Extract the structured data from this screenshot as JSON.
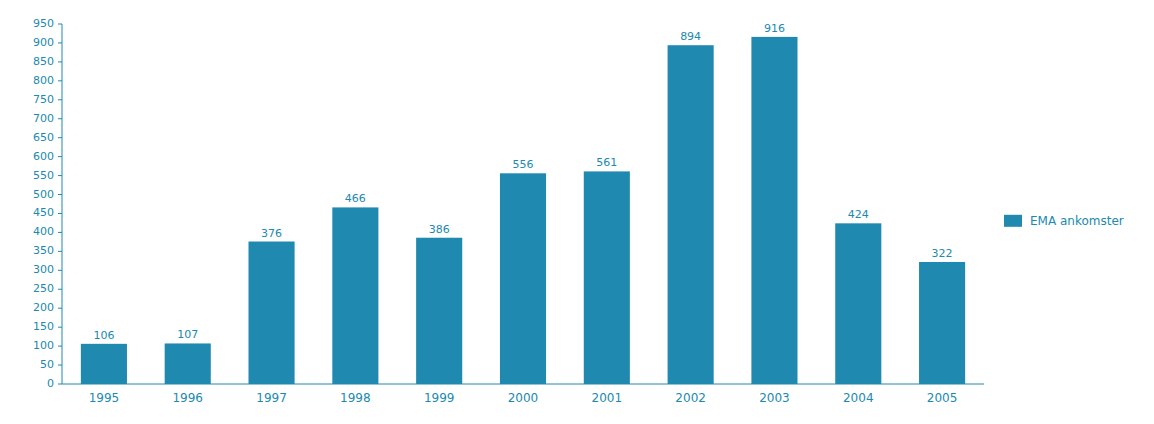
{
  "chart_data": {
    "type": "bar",
    "categories": [
      "1995",
      "1996",
      "1997",
      "1998",
      "1999",
      "2000",
      "2001",
      "2002",
      "2003",
      "2004",
      "2005"
    ],
    "series": [
      {
        "name": "EMA ankomster",
        "color": "#2089b0",
        "values": [
          106,
          107,
          376,
          466,
          386,
          556,
          561,
          894,
          916,
          424,
          322
        ]
      }
    ],
    "color": "#2089b0",
    "ylim": [
      0,
      950
    ],
    "yticks": [
      0,
      50,
      100,
      150,
      200,
      250,
      300,
      350,
      400,
      450,
      500,
      550,
      600,
      650,
      700,
      750,
      800,
      850,
      900,
      950
    ],
    "data_labels": true,
    "legend": "right",
    "grid": false
  }
}
